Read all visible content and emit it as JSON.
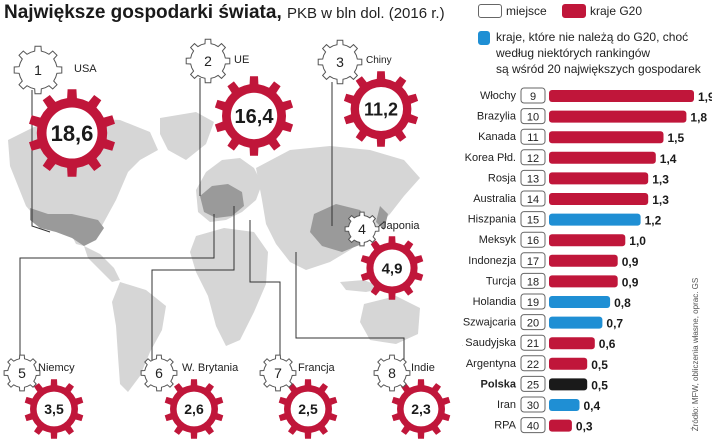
{
  "header": {
    "title": "Największe gospodarki świata,",
    "subtitle": "PKB w bln dol. (2016 r.)"
  },
  "legend": {
    "place_label": "miejsce",
    "g20_label": "kraje G20",
    "non_g20_line1": "kraje, które nie należą do G20, choć",
    "non_g20_line2": "według niektórych rankingów",
    "non_g20_line3": "są wśród 20 największych gospodarek"
  },
  "source": "Źródło: MFW, obliczenia własne, oprac. GS",
  "colors": {
    "g20": "#c0163a",
    "non_g20": "#1f8fd4",
    "poland": "#1a1a1a",
    "gear_white": "#ffffff",
    "map": "#d6d6d6",
    "map_dark": "#9a9a9a"
  },
  "top_countries": [
    {
      "rank": "1",
      "name": "USA",
      "value": "18,6"
    },
    {
      "rank": "2",
      "name": "UE",
      "value": "16,4"
    },
    {
      "rank": "3",
      "name": "Chiny",
      "value": "11,2"
    },
    {
      "rank": "4",
      "name": "Japonia",
      "value": "4,9"
    },
    {
      "rank": "5",
      "name": "Niemcy",
      "value": "3,5"
    },
    {
      "rank": "6",
      "name": "W. Brytania",
      "value": "2,6"
    },
    {
      "rank": "7",
      "name": "Francja",
      "value": "2,5"
    },
    {
      "rank": "8",
      "name": "Indie",
      "value": "2,3"
    }
  ],
  "chart_data": {
    "type": "bar",
    "orientation": "horizontal",
    "title": "Największe gospodarki świata, PKB w bln dol. (2016 r.)",
    "unit": "bln dol.",
    "categories": [
      "Włochy",
      "Brazylia",
      "Kanada",
      "Korea Płd.",
      "Rosja",
      "Australia",
      "Hiszpania",
      "Meksyk",
      "Indonezja",
      "Turcja",
      "Holandia",
      "Szwajcaria",
      "Arabia Saudyjska",
      "Argentyna",
      "Polska",
      "Iran",
      "RPA"
    ],
    "ranks": [
      "9",
      "10",
      "11",
      "12",
      "13",
      "14",
      "15",
      "16",
      "17",
      "18",
      "19",
      "20",
      "21",
      "22",
      "25",
      "30",
      "40"
    ],
    "values": [
      1.9,
      1.8,
      1.5,
      1.4,
      1.3,
      1.3,
      1.2,
      1.0,
      0.9,
      0.9,
      0.8,
      0.7,
      0.6,
      0.5,
      0.5,
      0.4,
      0.3
    ],
    "value_labels": [
      "1,9",
      "1,8",
      "1,5",
      "1,4",
      "1,3",
      "1,3",
      "1,2",
      "1,0",
      "0,9",
      "0,9",
      "0,8",
      "0,7",
      "0,6",
      "0,5",
      "0,5",
      "0,4",
      "0,3"
    ],
    "group": [
      "g20",
      "g20",
      "g20",
      "g20",
      "g20",
      "g20",
      "non_g20",
      "g20",
      "g20",
      "g20",
      "non_g20",
      "non_g20",
      "g20",
      "g20",
      "poland",
      "non_g20",
      "g20"
    ],
    "xlim": [
      0,
      1.9
    ]
  }
}
